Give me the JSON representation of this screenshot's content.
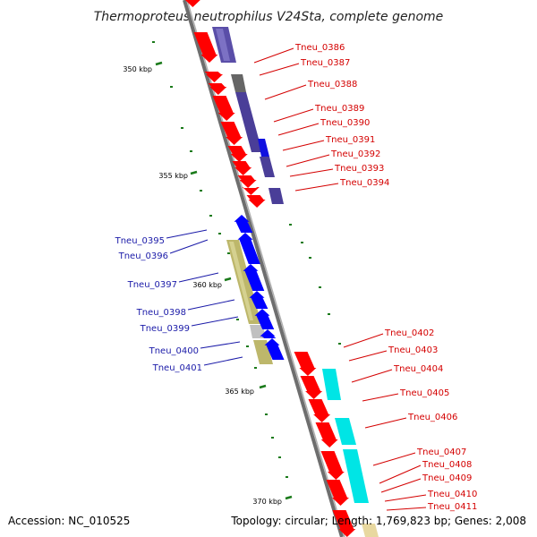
{
  "title": "Thermoproteus neutrophilus V24Sta, complete genome",
  "footer": {
    "accession": "Accession: NC_010525",
    "summary": "Topology: circular; Length: 1,769,823 bp; Genes: 2,008"
  },
  "colors": {
    "forward_gene": "#ff0000",
    "reverse_gene": "#0000ff",
    "backbone": "#808080",
    "tick": "#1a7a1a",
    "label_forward": "#d40000",
    "label_reverse": "#1a1aa8",
    "cog_purple": "#5a4ea8",
    "cog_cyan": "#00e5e5",
    "cog_khaki": "#bdb76b",
    "cog_gray": "#666666"
  },
  "scale_labels": [
    "350 kbp",
    "355 kbp",
    "360 kbp",
    "365 kbp",
    "370 kbp"
  ],
  "genes": [
    {
      "id": "Tneu_0386",
      "strand": "+",
      "cog": "purple"
    },
    {
      "id": "Tneu_0387",
      "strand": "+",
      "cog": "purple"
    },
    {
      "id": "Tneu_0388",
      "strand": "+",
      "cog": "gray"
    },
    {
      "id": "Tneu_0389",
      "strand": "+",
      "cog": "darkpurple"
    },
    {
      "id": "Tneu_0390",
      "strand": "+",
      "cog": "darkpurple"
    },
    {
      "id": "Tneu_0391",
      "strand": "+",
      "cog": "blue"
    },
    {
      "id": "Tneu_0392",
      "strand": "+",
      "cog": "darkpurple"
    },
    {
      "id": "Tneu_0393",
      "strand": "+",
      "cog": "none"
    },
    {
      "id": "Tneu_0394",
      "strand": "+",
      "cog": "darkpurple"
    },
    {
      "id": "Tneu_0395",
      "strand": "-",
      "cog": "none"
    },
    {
      "id": "Tneu_0396",
      "strand": "-",
      "cog": "none"
    },
    {
      "id": "Tneu_0397",
      "strand": "-",
      "cog": "khaki"
    },
    {
      "id": "Tneu_0398",
      "strand": "-",
      "cog": "khaki"
    },
    {
      "id": "Tneu_0399",
      "strand": "-",
      "cog": "khaki"
    },
    {
      "id": "Tneu_0400",
      "strand": "-",
      "cog": "lightgray"
    },
    {
      "id": "Tneu_0401",
      "strand": "-",
      "cog": "khaki"
    },
    {
      "id": "Tneu_0402",
      "strand": "+",
      "cog": "none"
    },
    {
      "id": "Tneu_0403",
      "strand": "+",
      "cog": "none"
    },
    {
      "id": "Tneu_0404",
      "strand": "+",
      "cog": "cyan"
    },
    {
      "id": "Tneu_0405",
      "strand": "+",
      "cog": "none"
    },
    {
      "id": "Tneu_0406",
      "strand": "+",
      "cog": "cyan"
    },
    {
      "id": "Tneu_0407",
      "strand": "+",
      "cog": "cyan"
    },
    {
      "id": "Tneu_0408",
      "strand": "+",
      "cog": "cyan"
    },
    {
      "id": "Tneu_0409",
      "strand": "+",
      "cog": "none"
    },
    {
      "id": "Tneu_0410",
      "strand": "+",
      "cog": "none"
    },
    {
      "id": "Tneu_0411",
      "strand": "+",
      "cog": "none"
    }
  ]
}
